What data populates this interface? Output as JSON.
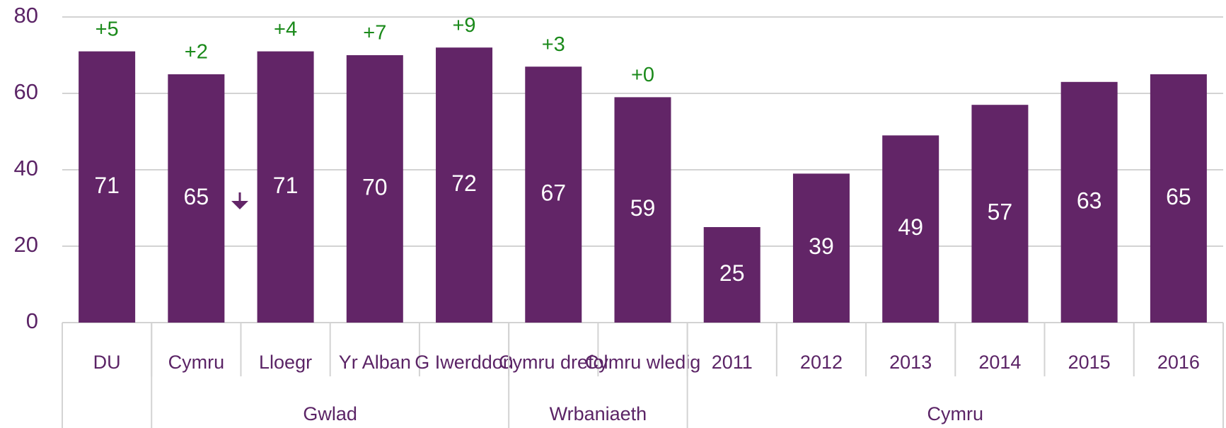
{
  "chart_data": {
    "type": "bar",
    "categories": [
      "DU",
      "Cymru",
      "Lloegr",
      "Yr Alban",
      "G Iwerddon",
      "Cymru drefol",
      "Cymru wledig",
      "2011",
      "2012",
      "2013",
      "2014",
      "2015",
      "2016"
    ],
    "values": [
      71,
      65,
      71,
      70,
      72,
      67,
      59,
      25,
      39,
      49,
      57,
      63,
      65
    ],
    "change_labels": [
      "+5",
      "+2",
      "+4",
      "+7",
      "+9",
      "+3",
      "+0",
      null,
      null,
      null,
      null,
      null,
      null
    ],
    "groups": [
      {
        "name": null,
        "span": 1
      },
      {
        "name": "Gwlad",
        "span": 4
      },
      {
        "name": "Wrbaniaeth",
        "span": 2
      },
      {
        "name": "Cymru",
        "span": 6
      }
    ],
    "color": "#622567",
    "ylim": [
      0,
      80
    ],
    "yticks": [
      0,
      20,
      40,
      60,
      80
    ],
    "grid": true
  }
}
